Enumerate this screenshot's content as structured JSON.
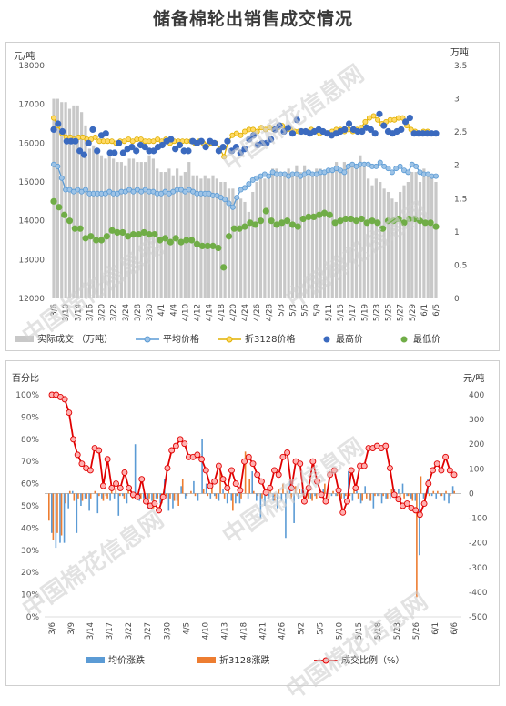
{
  "title": "储备棉轮出销售成交情况",
  "watermark": "中国棉花信息网",
  "chart_data": [
    {
      "type": "bar+line",
      "left_axis_unit": "元/吨",
      "right_axis_unit": "万吨",
      "ylim_left": [
        12000,
        18000
      ],
      "left_ticks": [
        "12000",
        "13000",
        "14000",
        "15000",
        "16000",
        "17000",
        "18000"
      ],
      "ylim_right": [
        0,
        3.5
      ],
      "right_ticks": [
        "0",
        "0.5",
        "1",
        "1.5",
        "2",
        "2.5",
        "3",
        "3.5"
      ],
      "x_ticks": [
        "3/6",
        "3/10",
        "3/14",
        "3/16",
        "3/20",
        "3/22",
        "3/24",
        "3/28",
        "3/30",
        "4/1",
        "4/4",
        "4/10",
        "4/12",
        "4/14",
        "4/18",
        "4/20",
        "4/24",
        "4/26",
        "4/28",
        "5/3",
        "5/3",
        "5/5",
        "5/9",
        "5/11",
        "5/15",
        "5/17",
        "5/19",
        "5/23",
        "5/25",
        "5/27",
        "5/29",
        "6/1",
        "6/5"
      ],
      "legend": [
        "实际成交 （万吨）",
        "平均价格",
        "折3128价格",
        "最高价",
        "最低价"
      ],
      "colors": {
        "volume": "#c8c8c8",
        "avg": "#9dc3e6",
        "avg_edge": "#5b9bd5",
        "p3128": "#ffd966",
        "p3128_edge": "#e0b000",
        "high": "#3b6abf",
        "low": "#70ad47"
      },
      "series": [
        {
          "name": "实际成交 （万吨）",
          "axis": "right",
          "values": [
            3.0,
            3.0,
            2.95,
            2.95,
            2.85,
            2.9,
            2.9,
            2.8,
            2.6,
            2.25,
            2.3,
            2.2,
            2.15,
            2.1,
            2.15,
            2.1,
            2.05,
            2.05,
            2.0,
            2.1,
            2.1,
            2.05,
            2.05,
            2.05,
            2.15,
            2.1,
            1.95,
            1.9,
            1.9,
            1.95,
            1.85,
            1.95,
            1.85,
            1.9,
            2.05,
            1.85,
            1.85,
            1.8,
            1.85,
            1.8,
            1.85,
            1.8,
            1.75,
            1.75,
            1.65,
            1.65,
            1.55,
            1.5,
            1.45,
            1.3,
            1.6,
            1.75,
            1.8,
            1.8,
            1.85,
            1.95,
            1.95,
            1.85,
            1.9,
            1.95,
            1.9,
            2.0,
            1.9,
            2.0,
            1.85,
            1.9,
            1.95,
            1.95,
            1.9,
            1.9,
            1.9,
            2.05,
            1.95,
            2.05,
            2.0,
            2.0,
            2.0,
            2.15,
            2.05,
            1.8,
            1.7,
            1.8,
            1.75,
            1.65,
            1.6,
            1.5,
            1.45,
            1.6,
            1.7,
            1.75,
            1.9,
            1.9,
            1.75,
            1.95,
            1.85,
            1.8,
            1.75
          ]
        },
        {
          "name": "平均价格",
          "axis": "left",
          "values": [
            15450,
            15400,
            15100,
            14800,
            14800,
            14750,
            14800,
            14750,
            14800,
            14700,
            14700,
            14700,
            14700,
            14700,
            14750,
            14700,
            14700,
            14750,
            14750,
            14800,
            14750,
            14800,
            14750,
            14800,
            14750,
            14750,
            14700,
            14700,
            14750,
            14700,
            14750,
            14800,
            14800,
            14750,
            14800,
            14750,
            14700,
            14700,
            14700,
            14700,
            14650,
            14650,
            14600,
            14550,
            14450,
            14350,
            14600,
            14800,
            14850,
            14950,
            15050,
            15100,
            15150,
            15200,
            15150,
            15250,
            15200,
            15200,
            15200,
            15150,
            15200,
            15200,
            15150,
            15200,
            15250,
            15200,
            15200,
            15250,
            15250,
            15300,
            15300,
            15350,
            15300,
            15250,
            15400,
            15450,
            15400,
            15450,
            15450,
            15450,
            15400,
            15400,
            15500,
            15400,
            15350,
            15250,
            15350,
            15400,
            15300,
            15250,
            15450,
            15400,
            15250,
            15200,
            15200,
            15150,
            15150
          ]
        },
        {
          "name": "折3128价格",
          "axis": "left",
          "values": [
            16650,
            16450,
            16250,
            16150,
            16150,
            16100,
            16150,
            16150,
            16100,
            16100,
            16150,
            16050,
            16050,
            16050,
            16050,
            16000,
            16050,
            16050,
            16100,
            16050,
            16100,
            16100,
            16050,
            16050,
            16050,
            16100,
            16050,
            16100,
            16000,
            16050,
            16050,
            16050,
            16050,
            16050,
            16000,
            16050,
            16000,
            15950,
            16000,
            16000,
            15850,
            15650,
            16050,
            16200,
            16250,
            16200,
            16300,
            16350,
            16350,
            16300,
            16400,
            16350,
            16400,
            16350,
            16400,
            16450,
            16350,
            16350,
            16300,
            16300,
            16300,
            16300,
            16350,
            16300,
            16250,
            16300,
            16250,
            16300,
            16350,
            16350,
            16300,
            16350,
            16300,
            16350,
            16400,
            16550,
            16650,
            16700,
            16600,
            16500,
            16550,
            16600,
            16600,
            16650,
            16650,
            16450,
            16350,
            16300,
            16250,
            16300,
            16300,
            16250,
            16250
          ]
        },
        {
          "name": "最高价",
          "axis": "left",
          "values": [
            16350,
            16500,
            16300,
            16050,
            16050,
            16050,
            15800,
            15700,
            16000,
            16350,
            15800,
            16200,
            16250,
            15750,
            15750,
            16000,
            15750,
            15850,
            15900,
            15800,
            15950,
            15900,
            15800,
            15800,
            15900,
            15950,
            16050,
            16100,
            15850,
            15950,
            15800,
            15800,
            16050,
            16000,
            16050,
            15900,
            16050,
            16000,
            15800,
            15900,
            16050,
            15800,
            15900,
            15750,
            15850,
            16100,
            16200,
            15950,
            16000,
            16000,
            16100,
            16350,
            16450,
            16300,
            16400,
            16250,
            16600,
            16300,
            16300,
            16250,
            16300,
            16350,
            16300,
            16250,
            16200,
            16250,
            16300,
            16350,
            16500,
            16350,
            16300,
            16300,
            16400,
            16350,
            16250,
            16750,
            16450,
            16300,
            16250,
            16300,
            16350,
            16550,
            16650,
            16250,
            16250,
            16250,
            16250,
            16250,
            16250
          ]
        },
        {
          "name": "最低价",
          "axis": "left",
          "values": [
            14500,
            14350,
            14150,
            14000,
            13800,
            13800,
            13550,
            13600,
            13500,
            13500,
            13600,
            13750,
            13700,
            13700,
            13600,
            13650,
            13650,
            13700,
            13650,
            13650,
            13500,
            13550,
            13450,
            13550,
            13450,
            13500,
            13500,
            13400,
            13350,
            13350,
            13350,
            13300,
            12800,
            13600,
            13800,
            13800,
            13850,
            13950,
            13900,
            14000,
            14250,
            14000,
            13900,
            13950,
            14000,
            13900,
            13850,
            14050,
            14100,
            14100,
            14150,
            14200,
            14150,
            13950,
            14000,
            14050,
            14050,
            14000,
            14050,
            13950,
            14000,
            13950,
            13800,
            14000,
            14000,
            14050,
            13950,
            14050,
            14050,
            14000,
            13950,
            13950,
            13850
          ]
        }
      ]
    },
    {
      "type": "bar+line",
      "left_axis_unit": "百分比",
      "right_axis_unit": "元/吨",
      "ylim_left": [
        0,
        100
      ],
      "left_ticks": [
        "0%",
        "10%",
        "20%",
        "30%",
        "40%",
        "50%",
        "60%",
        "70%",
        "80%",
        "90%",
        "100%"
      ],
      "ylim_right": [
        -500,
        400
      ],
      "right_ticks": [
        "-500",
        "-400",
        "-300",
        "-200",
        "-100",
        "0",
        "100",
        "200",
        "300",
        "400"
      ],
      "x_ticks": [
        "3/6",
        "3/9",
        "3/14",
        "3/17",
        "3/22",
        "3/27",
        "3/30",
        "4/5",
        "4/10",
        "4/13",
        "4/18",
        "4/21",
        "4/26",
        "5/2",
        "5/5",
        "5/10",
        "5/15",
        "5/18",
        "5/23",
        "5/26",
        "6/1",
        "6/6"
      ],
      "legend": [
        "均价涨跌",
        "折3128涨跌",
        "成交比例（%）"
      ],
      "colors": {
        "avg_change": "#5b9bd5",
        "p3128_change": "#ed7d31",
        "ratio": "#e00000",
        "ratio_marker": "#ffb0b0"
      },
      "series": [
        {
          "name": "均价涨跌",
          "axis": "right",
          "values": [
            0,
            -160,
            -220,
            -200,
            -200,
            -60,
            10,
            -160,
            -50,
            -20,
            -70,
            0,
            -80,
            -20,
            -10,
            -30,
            -20,
            -90,
            -10,
            -40,
            -10,
            200,
            -30,
            -20,
            -60,
            -30,
            -20,
            -40,
            60,
            -70,
            -60,
            -30,
            30,
            -20,
            0,
            50,
            -30,
            220,
            40,
            -20,
            -10,
            -30,
            20,
            -40,
            -30,
            -40,
            -40,
            0,
            -20,
            90,
            -30,
            -100,
            -50,
            -20,
            -30,
            -60,
            -30,
            -180,
            50,
            -120,
            -20,
            20,
            -10,
            -20,
            -10,
            -10,
            20,
            10,
            -10,
            -10,
            -30,
            -20,
            90,
            -30,
            10,
            -40,
            30,
            -30,
            -60,
            -10,
            -40,
            -20,
            -20,
            20,
            20,
            40,
            -10,
            -20,
            -30,
            -250,
            -20,
            60,
            -10,
            -20,
            -10,
            -30,
            -40,
            30
          ]
        },
        {
          "name": "折3128涨跌",
          "axis": "right",
          "values": [
            -110,
            -190,
            -160,
            -170,
            -40,
            10,
            -30,
            -20,
            -30,
            -20,
            -20,
            10,
            -10,
            -30,
            -20,
            10,
            20,
            -10,
            -20,
            10,
            -20,
            -10,
            -20,
            -20,
            -20,
            -60,
            -20,
            -40,
            -10,
            -20,
            -30,
            -50,
            60,
            -10,
            10,
            -10,
            0,
            20,
            -10,
            30,
            -20,
            90,
            -20,
            40,
            -70,
            -10,
            -20,
            170,
            60,
            10,
            -10,
            -20,
            -10,
            30,
            -30,
            20,
            40,
            10,
            -20,
            30,
            20,
            -10,
            -20,
            -30,
            -20,
            10,
            40,
            -20,
            10,
            -10,
            -20,
            -10,
            -10,
            30,
            -20,
            -30,
            -20,
            -30,
            -10,
            -10,
            -10,
            -20,
            20,
            -10,
            -20,
            -20,
            -10,
            -30,
            -420,
            70,
            -50,
            -10,
            10,
            10,
            -10,
            10,
            -10,
            10
          ]
        },
        {
          "name": "成交比例（%）",
          "axis": "left",
          "values": [
            100,
            100,
            99,
            98,
            92,
            80,
            73,
            69,
            67,
            66,
            76,
            75,
            59,
            71,
            58,
            60,
            58,
            65,
            58,
            55,
            54,
            62,
            52,
            50,
            51,
            48,
            54,
            67,
            75,
            77,
            80,
            78,
            72,
            72,
            73,
            71,
            66,
            59,
            61,
            68,
            62,
            58,
            66,
            60,
            57,
            70,
            72,
            69,
            64,
            61,
            56,
            58,
            66,
            64,
            72,
            74,
            58,
            70,
            69,
            52,
            58,
            70,
            61,
            55,
            52,
            64,
            66,
            57,
            47,
            52,
            66,
            58,
            68,
            68,
            76,
            76,
            77,
            76,
            77,
            67,
            55,
            53,
            50,
            51,
            49,
            48,
            46,
            51,
            60,
            66,
            69,
            66,
            72,
            66,
            64
          ]
        }
      ]
    }
  ]
}
